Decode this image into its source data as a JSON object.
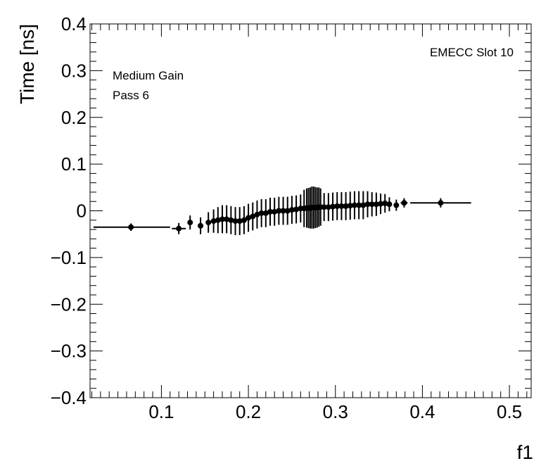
{
  "chart_data": {
    "type": "scatter",
    "xlabel": "f1",
    "ylabel": "Time [ns]",
    "xlim": [
      0.018,
      0.525
    ],
    "ylim": [
      -0.4,
      0.4
    ],
    "xticks": [
      {
        "value": 0.1,
        "label": "0.1"
      },
      {
        "value": 0.2,
        "label": "0.2"
      },
      {
        "value": 0.3,
        "label": "0.3"
      },
      {
        "value": 0.4,
        "label": "0.4"
      },
      {
        "value": 0.5,
        "label": "0.5"
      }
    ],
    "yticks": [
      {
        "value": 0.4,
        "label": "0.4"
      },
      {
        "value": 0.3,
        "label": "0.3"
      },
      {
        "value": 0.2,
        "label": "0.2"
      },
      {
        "value": 0.1,
        "label": "0.1"
      },
      {
        "value": 0.0,
        "label": "0"
      },
      {
        "value": -0.1,
        "label": "−0.1"
      },
      {
        "value": -0.2,
        "label": "−0.2"
      },
      {
        "value": -0.3,
        "label": "−0.3"
      },
      {
        "value": -0.4,
        "label": "−0.4"
      }
    ],
    "annotations": {
      "slot": "EMECC Slot 10",
      "gain": "Medium Gain",
      "pass": "Pass 6"
    },
    "color": "#000000",
    "points": [
      {
        "x": 0.065,
        "xlo": 0.022,
        "xhi": 0.11,
        "y": -0.035,
        "yerr": 0.008
      },
      {
        "x": 0.12,
        "xlo": 0.112,
        "xhi": 0.128,
        "y": -0.038,
        "yerr": 0.012
      },
      {
        "x": 0.133,
        "xlo": 0.13,
        "xhi": 0.136,
        "y": -0.025,
        "yerr": 0.015
      },
      {
        "x": 0.145,
        "xlo": 0.142,
        "xhi": 0.148,
        "y": -0.032,
        "yerr": 0.018
      },
      {
        "x": 0.154,
        "xlo": 0.151,
        "xhi": 0.157,
        "y": -0.025,
        "yerr": 0.022
      },
      {
        "x": 0.16,
        "y": -0.022,
        "yerr": 0.025
      },
      {
        "x": 0.165,
        "y": -0.02,
        "yerr": 0.028
      },
      {
        "x": 0.17,
        "y": -0.018,
        "yerr": 0.03
      },
      {
        "x": 0.175,
        "y": -0.018,
        "yerr": 0.03
      },
      {
        "x": 0.18,
        "y": -0.02,
        "yerr": 0.03
      },
      {
        "x": 0.185,
        "y": -0.022,
        "yerr": 0.03
      },
      {
        "x": 0.19,
        "y": -0.022,
        "yerr": 0.03
      },
      {
        "x": 0.195,
        "y": -0.02,
        "yerr": 0.03
      },
      {
        "x": 0.2,
        "y": -0.015,
        "yerr": 0.03
      },
      {
        "x": 0.205,
        "y": -0.012,
        "yerr": 0.03
      },
      {
        "x": 0.21,
        "y": -0.008,
        "yerr": 0.03
      },
      {
        "x": 0.215,
        "y": -0.005,
        "yerr": 0.03
      },
      {
        "x": 0.22,
        "y": -0.005,
        "yerr": 0.03
      },
      {
        "x": 0.225,
        "y": -0.002,
        "yerr": 0.03
      },
      {
        "x": 0.23,
        "y": -0.002,
        "yerr": 0.03
      },
      {
        "x": 0.235,
        "y": 0.0,
        "yerr": 0.03
      },
      {
        "x": 0.24,
        "y": 0.0,
        "yerr": 0.03
      },
      {
        "x": 0.245,
        "y": 0.0,
        "yerr": 0.03
      },
      {
        "x": 0.25,
        "y": 0.002,
        "yerr": 0.03
      },
      {
        "x": 0.255,
        "y": 0.003,
        "yerr": 0.03
      },
      {
        "x": 0.26,
        "y": 0.005,
        "yerr": 0.03
      },
      {
        "x": 0.264,
        "y": 0.005,
        "yerr": 0.04
      },
      {
        "x": 0.267,
        "y": 0.006,
        "yerr": 0.042
      },
      {
        "x": 0.269,
        "y": 0.006,
        "yerr": 0.043
      },
      {
        "x": 0.271,
        "y": 0.006,
        "yerr": 0.044
      },
      {
        "x": 0.273,
        "y": 0.007,
        "yerr": 0.045
      },
      {
        "x": 0.275,
        "y": 0.007,
        "yerr": 0.045
      },
      {
        "x": 0.277,
        "y": 0.007,
        "yerr": 0.044
      },
      {
        "x": 0.279,
        "y": 0.007,
        "yerr": 0.043
      },
      {
        "x": 0.281,
        "y": 0.008,
        "yerr": 0.042
      },
      {
        "x": 0.283,
        "y": 0.008,
        "yerr": 0.04
      },
      {
        "x": 0.287,
        "y": 0.008,
        "yerr": 0.03
      },
      {
        "x": 0.292,
        "y": 0.008,
        "yerr": 0.03
      },
      {
        "x": 0.297,
        "y": 0.009,
        "yerr": 0.03
      },
      {
        "x": 0.302,
        "y": 0.01,
        "yerr": 0.03
      },
      {
        "x": 0.307,
        "y": 0.01,
        "yerr": 0.03
      },
      {
        "x": 0.312,
        "y": 0.01,
        "yerr": 0.03
      },
      {
        "x": 0.317,
        "y": 0.011,
        "yerr": 0.03
      },
      {
        "x": 0.322,
        "y": 0.012,
        "yerr": 0.03
      },
      {
        "x": 0.327,
        "y": 0.012,
        "yerr": 0.03
      },
      {
        "x": 0.332,
        "y": 0.012,
        "yerr": 0.03
      },
      {
        "x": 0.337,
        "y": 0.014,
        "yerr": 0.028
      },
      {
        "x": 0.342,
        "y": 0.014,
        "yerr": 0.026
      },
      {
        "x": 0.347,
        "y": 0.014,
        "yerr": 0.025
      },
      {
        "x": 0.352,
        "y": 0.015,
        "yerr": 0.022
      },
      {
        "x": 0.357,
        "y": 0.016,
        "yerr": 0.02
      },
      {
        "x": 0.362,
        "y": 0.014,
        "yerr": 0.015
      },
      {
        "x": 0.37,
        "xlo": 0.367,
        "xhi": 0.373,
        "y": 0.012,
        "yerr": 0.012
      },
      {
        "x": 0.379,
        "xlo": 0.375,
        "xhi": 0.383,
        "y": 0.017,
        "yerr": 0.01
      },
      {
        "x": 0.421,
        "xlo": 0.386,
        "xhi": 0.456,
        "y": 0.017,
        "yerr": 0.01
      }
    ]
  }
}
